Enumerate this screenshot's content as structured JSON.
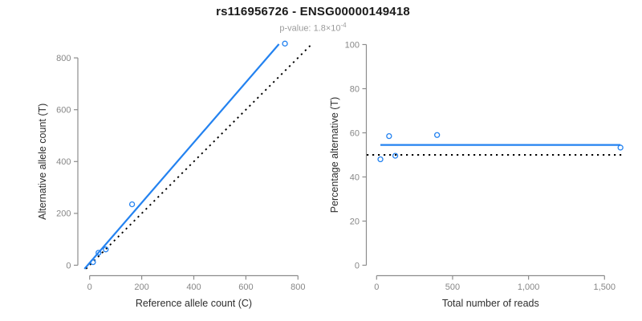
{
  "header": {
    "title": "rs116956726 - ENSG00000149418",
    "subtitle_label": "p-value: ",
    "pvalue_mantissa": "1.8×10",
    "pvalue_exponent": "-4"
  },
  "colors": {
    "accent_blue": "#2382F0",
    "reference_black": "#000000",
    "axis_line": "#8c8c8c",
    "tick_label": "#878787",
    "axis_title": "#2e2e2e",
    "title": "#1a1a1a",
    "subtitle": "#9b9b9b",
    "background": "#ffffff"
  },
  "chart_data": [
    {
      "name": "allele-counts-scatter",
      "type": "scatter",
      "xlabel": "Reference allele count (C)",
      "ylabel": "Alternative allele count (T)",
      "xlim": [
        0,
        855
      ],
      "ylim": [
        0,
        855
      ],
      "xticks": [
        0,
        200,
        400,
        600,
        800
      ],
      "xtick_labels": [
        "0",
        "200",
        "400",
        "600",
        "800"
      ],
      "yticks": [
        0,
        200,
        400,
        600,
        800
      ],
      "ytick_labels": [
        "0",
        "200",
        "400",
        "600",
        "800"
      ],
      "points": [
        [
          13,
          12
        ],
        [
          34,
          48
        ],
        [
          62,
          61
        ],
        [
          163,
          235
        ],
        [
          750,
          855
        ]
      ],
      "lines": [
        {
          "name": "identity-line",
          "slope": 1,
          "intercept": 0,
          "style": "dotted",
          "color": "black"
        },
        {
          "name": "fit-line",
          "slope": 1.161,
          "intercept": 9,
          "style": "solid",
          "color": "blue"
        }
      ],
      "grid": false,
      "legend": null
    },
    {
      "name": "percentage-vs-reads-scatter",
      "type": "scatter",
      "xlabel": "Total number of reads",
      "ylabel": "Percentage alternative (T)",
      "xlim": [
        0,
        1610
      ],
      "ylim": [
        0,
        100
      ],
      "xticks": [
        0,
        500,
        1000,
        1500
      ],
      "xtick_labels": [
        "0",
        "500",
        "1,000",
        "1,500"
      ],
      "yticks": [
        0,
        20,
        40,
        60,
        80,
        100
      ],
      "ytick_labels": [
        "0",
        "20",
        "40",
        "60",
        "80",
        "100"
      ],
      "points": [
        [
          25,
          48
        ],
        [
          82,
          58.5
        ],
        [
          123,
          49.6
        ],
        [
          398,
          59
        ],
        [
          1605,
          53.3
        ]
      ],
      "lines": [
        {
          "name": "fifty-percent-line",
          "slope": 0,
          "intercept": 50,
          "style": "dotted",
          "color": "black"
        },
        {
          "name": "fit-line",
          "slope": 0,
          "intercept": 54.5,
          "style": "solid",
          "color": "blue",
          "xspan": [
            25,
            1605
          ]
        }
      ],
      "grid": false,
      "legend": null
    }
  ]
}
